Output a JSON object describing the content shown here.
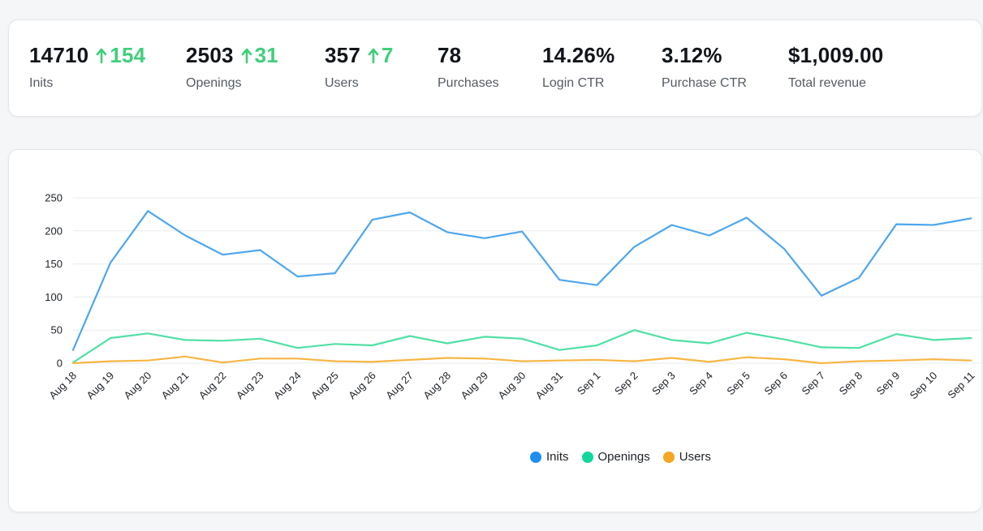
{
  "colors": {
    "positive": "#3fcf7a",
    "inits": "#4da6ee",
    "openings": "#4fe0a4",
    "users": "#f7b644",
    "legend_inits": "#1f8ef1",
    "legend_openings": "#12d69a",
    "legend_users": "#f5a623"
  },
  "stats": [
    {
      "value": "14710",
      "change": "154",
      "label": "Inits"
    },
    {
      "value": "2503",
      "change": "31",
      "label": "Openings"
    },
    {
      "value": "357",
      "change": "7",
      "label": "Users"
    },
    {
      "value": "78",
      "change": "",
      "label": "Purchases"
    },
    {
      "value": "14.26%",
      "change": "",
      "label": "Login CTR"
    },
    {
      "value": "3.12%",
      "change": "",
      "label": "Purchase CTR"
    },
    {
      "value": "$1,009.00",
      "change": "",
      "label": "Total revenue"
    }
  ],
  "chart_data": {
    "type": "line",
    "categories": [
      "Aug 18",
      "Aug 19",
      "Aug 20",
      "Aug 21",
      "Aug 22",
      "Aug 23",
      "Aug 24",
      "Aug 25",
      "Aug 26",
      "Aug 27",
      "Aug 28",
      "Aug 29",
      "Aug 30",
      "Aug 31",
      "Sep 1",
      "Sep 2",
      "Sep 3",
      "Sep 4",
      "Sep 5",
      "Sep 6",
      "Sep 7",
      "Sep 8",
      "Sep 9",
      "Sep 10",
      "Sep 11"
    ],
    "series": [
      {
        "name": "Inits",
        "values": [
          20,
          152,
          230,
          193,
          164,
          171,
          131,
          136,
          217,
          228,
          198,
          189,
          199,
          126,
          118,
          176,
          209,
          193,
          220,
          173,
          102,
          129,
          210,
          209,
          219
        ]
      },
      {
        "name": "Openings",
        "values": [
          1,
          38,
          45,
          35,
          34,
          37,
          23,
          29,
          27,
          41,
          30,
          40,
          37,
          20,
          27,
          50,
          35,
          30,
          46,
          36,
          24,
          23,
          44,
          35,
          38
        ]
      },
      {
        "name": "Users",
        "values": [
          0,
          3,
          4,
          10,
          1,
          7,
          7,
          3,
          2,
          5,
          8,
          7,
          3,
          4,
          5,
          3,
          8,
          2,
          9,
          6,
          0,
          3,
          4,
          6,
          4
        ]
      }
    ],
    "ylim": [
      0,
      250
    ],
    "yticks": [
      0,
      50,
      100,
      150,
      200,
      250
    ],
    "grid": true,
    "legend": "bottom-center"
  }
}
